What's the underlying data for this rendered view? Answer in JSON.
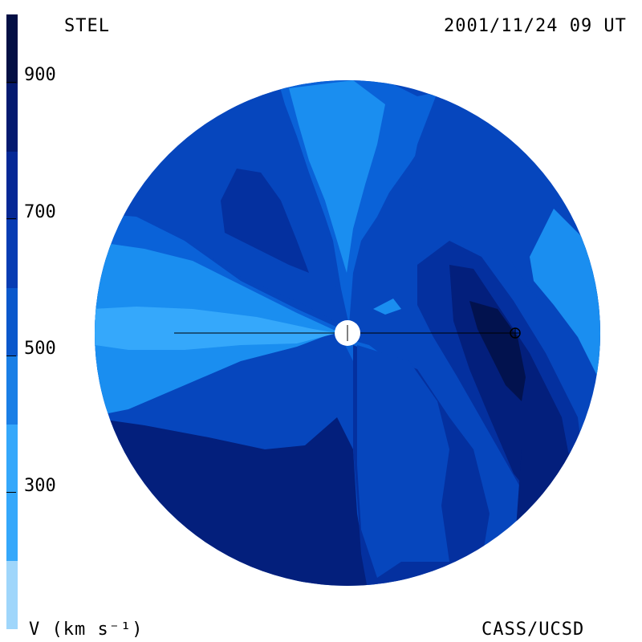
{
  "header": {
    "observatory": "STEL",
    "timestamp": "2001/11/24 09 UT"
  },
  "footer": {
    "units_label": "V (km s⁻¹)",
    "credit": "CASS/UCSD"
  },
  "colorbar": {
    "tick_labels": [
      "900",
      "700",
      "500",
      "300"
    ],
    "colors_bottom_to_top": [
      "#9fd6fb",
      "#35a8fb",
      "#1a7fe6",
      "#0a58cc",
      "#073cb3",
      "#052896",
      "#041a70",
      "#030f44"
    ]
  },
  "map_colors": {
    "v250": "#35a8fb",
    "v350": "#1a8ef0",
    "v450": "#0a62d8",
    "v550": "#0646bd",
    "v650": "#04309f",
    "v750": "#031f7c",
    "v850": "#02124e",
    "earth_marker": "#000000",
    "sun": "#ffffff"
  }
}
